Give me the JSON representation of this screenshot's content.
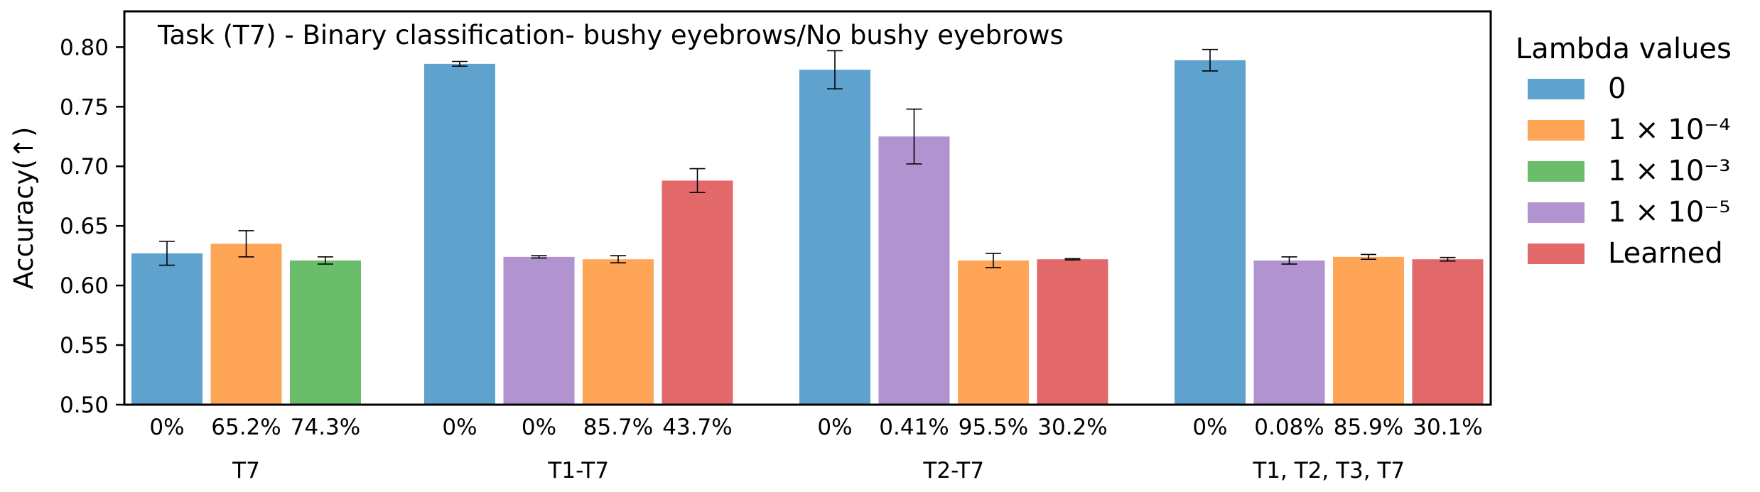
{
  "chart_data": {
    "type": "bar",
    "title": "Task (T7) - Binary classification- bushy eyebrows/No bushy eyebrows",
    "xlabel": "",
    "ylabel": "Accuracy(↑)",
    "ylim": [
      0.5,
      0.83
    ],
    "yticks": [
      "0.50",
      "0.55",
      "0.60",
      "0.65",
      "0.70",
      "0.75",
      "0.80"
    ],
    "legend": {
      "title": "Lambda values",
      "placement": "right",
      "entries": [
        {
          "key": "0",
          "label": "0",
          "color": "#5fa2cd"
        },
        {
          "key": "1e-4",
          "label": "1 × 10⁻⁴",
          "color": "#fea558"
        },
        {
          "key": "1e-3",
          "label": "1 × 10⁻³",
          "color": "#6abe6b"
        },
        {
          "key": "1e-5",
          "label": "1 × 10⁻⁵",
          "color": "#b193cf"
        },
        {
          "key": "learned",
          "label": "Learned",
          "color": "#e2686a"
        }
      ]
    },
    "groups": [
      {
        "label": "T7",
        "bars": [
          {
            "series": "0",
            "value": 0.627,
            "err": 0.01,
            "label": "0%"
          },
          {
            "series": "1e-4",
            "value": 0.635,
            "err": 0.011,
            "label": "65.2%"
          },
          {
            "series": "1e-3",
            "value": 0.621,
            "err": 0.003,
            "label": "74.3%"
          }
        ]
      },
      {
        "label": "T1-T7",
        "bars": [
          {
            "series": "0",
            "value": 0.786,
            "err": 0.002,
            "label": "0%"
          },
          {
            "series": "1e-5",
            "value": 0.624,
            "err": 0.001,
            "label": "0%"
          },
          {
            "series": "1e-4",
            "value": 0.622,
            "err": 0.003,
            "label": "85.7%"
          },
          {
            "series": "learned",
            "value": 0.688,
            "err": 0.01,
            "label": "43.7%"
          }
        ]
      },
      {
        "label": "T2-T7",
        "bars": [
          {
            "series": "0",
            "value": 0.781,
            "err": 0.016,
            "label": "0%"
          },
          {
            "series": "1e-5",
            "value": 0.725,
            "err": 0.023,
            "label": "0.41%"
          },
          {
            "series": "1e-4",
            "value": 0.621,
            "err": 0.006,
            "label": "95.5%"
          },
          {
            "series": "learned",
            "value": 0.622,
            "err": 0.0005,
            "label": "30.2%"
          }
        ]
      },
      {
        "label": "T1, T2, T3, T7",
        "bars": [
          {
            "series": "0",
            "value": 0.789,
            "err": 0.009,
            "label": "0%"
          },
          {
            "series": "1e-5",
            "value": 0.621,
            "err": 0.003,
            "label": "0.08%"
          },
          {
            "series": "1e-4",
            "value": 0.624,
            "err": 0.002,
            "label": "85.9%"
          },
          {
            "series": "learned",
            "value": 0.622,
            "err": 0.0015,
            "label": "30.1%"
          }
        ]
      }
    ]
  }
}
